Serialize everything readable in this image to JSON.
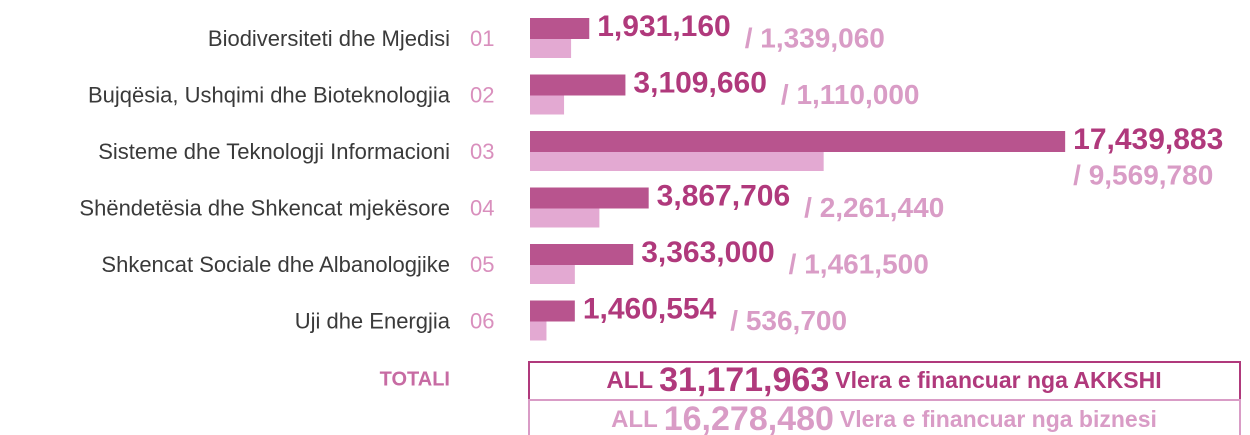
{
  "chart_data": {
    "type": "bar",
    "orientation": "horizontal",
    "categories": [
      "Biodiversiteti dhe Mjedisi",
      "Bujqësia, Ushqimi dhe Bioteknologjia",
      "Sisteme dhe Teknologji Informacioni",
      "Shëndetësia dhe Shkencat mjekësore",
      "Shkencat Sociale dhe Albanologjike",
      "Uji dhe Energjia"
    ],
    "codes": [
      "01",
      "02",
      "03",
      "04",
      "05",
      "06"
    ],
    "xlim": [
      0,
      17500000
    ],
    "series": [
      {
        "name": "Vlera e financuar nga AKKSHI",
        "color": "#b8548e",
        "label_color": "#b0397c",
        "values": [
          1931160,
          3109660,
          17439883,
          3867706,
          3363000,
          1460554
        ],
        "value_labels": [
          "1,931,160",
          "3,109,660",
          "17,439,883",
          "3,867,706",
          "3,363,000",
          "1,460,554"
        ]
      },
      {
        "name": "Vlera e financuar nga biznesi",
        "color": "#e3a9d2",
        "label_color": "#d99cc6",
        "values": [
          1339060,
          1110000,
          9569780,
          2261440,
          1461500,
          536700
        ],
        "value_labels": [
          "/ 1,339,060",
          "/ 1,110,000",
          "/ 9,569,780",
          "/ 2,261,440",
          "/ 1,461,500",
          "/ 536,700"
        ]
      }
    ],
    "totals": {
      "label": "TOTALI",
      "currency": "ALL",
      "amounts": [
        "31,171,963",
        "16,278,480"
      ]
    }
  }
}
